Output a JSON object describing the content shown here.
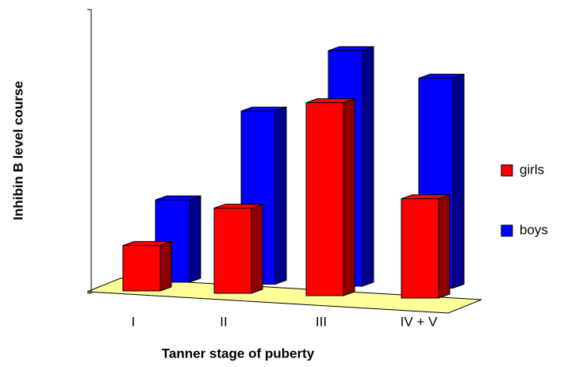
{
  "chart_data": {
    "type": "bar3d",
    "x_label": "Tanner stage of puberty",
    "y_label": "Inhibin B level course",
    "categories": [
      "I",
      "II",
      "III",
      "IV + V"
    ],
    "series": [
      {
        "name": "girls",
        "color": "#ff0000",
        "values": [
          16,
          30,
          68,
          35
        ]
      },
      {
        "name": "boys",
        "color": "#0000ff",
        "values": [
          29,
          61,
          83,
          74
        ]
      }
    ],
    "ylim": [
      0,
      100
    ],
    "legend": "right"
  }
}
